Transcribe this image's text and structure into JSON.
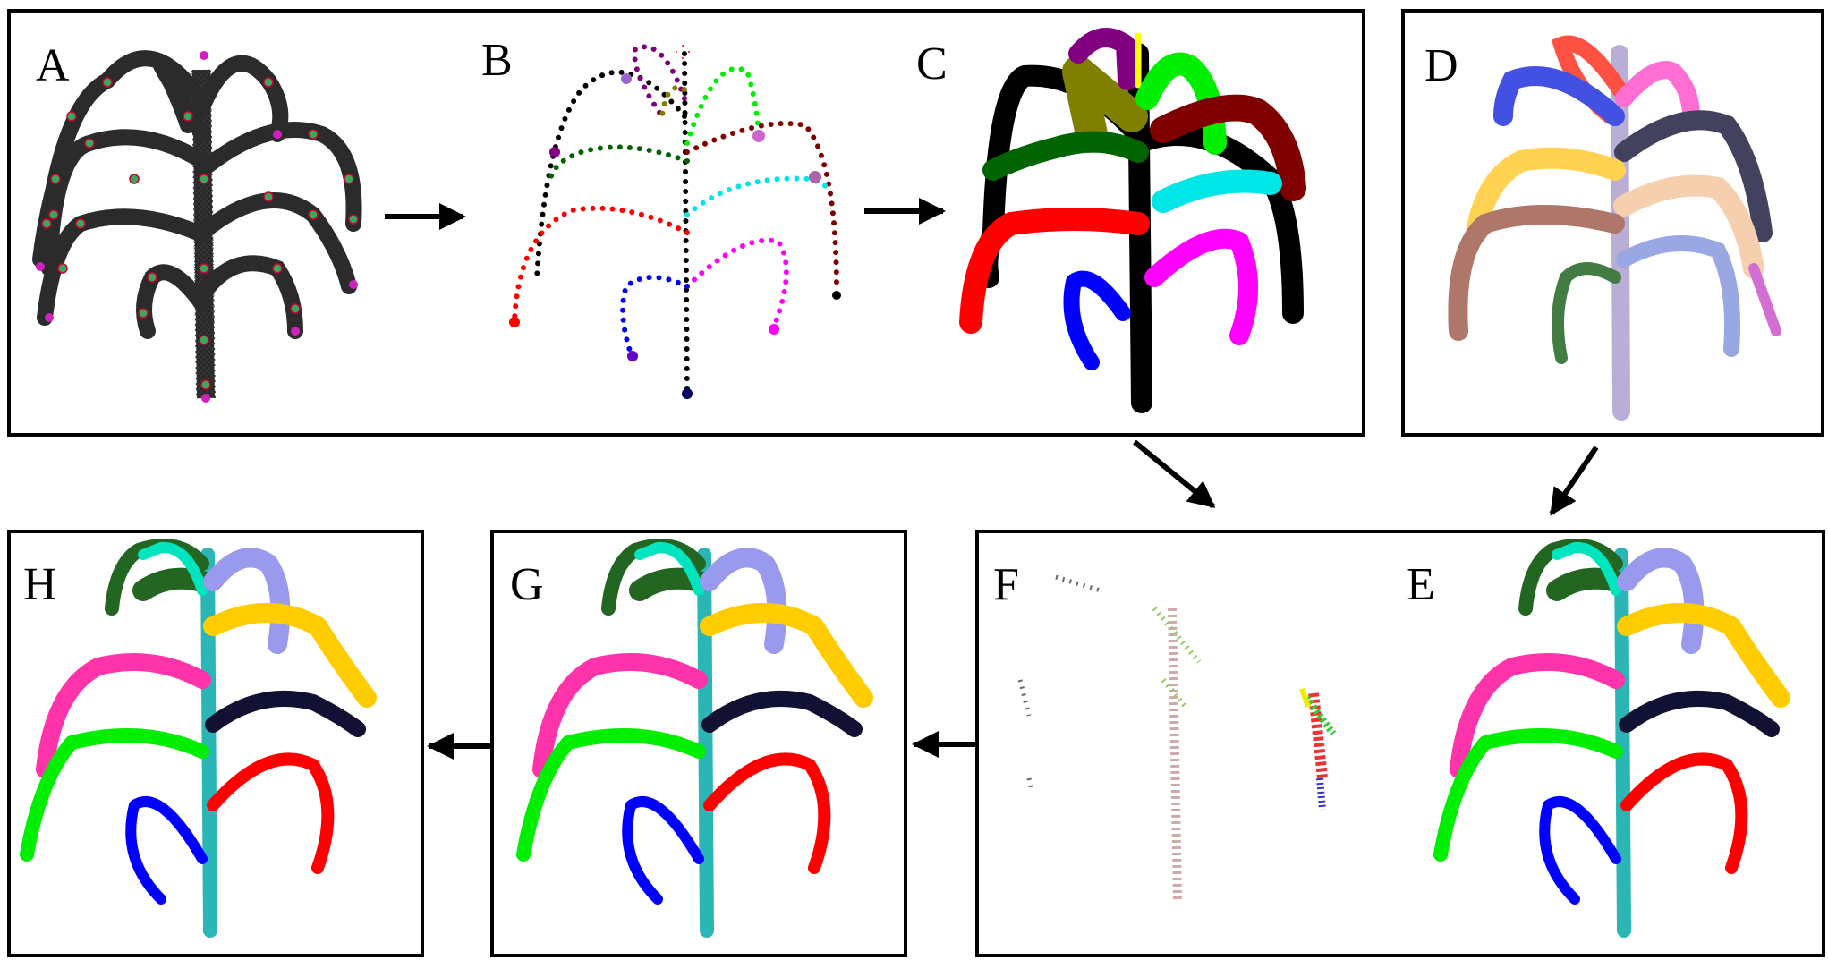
{
  "panels": [
    {
      "id": "A",
      "label": "A"
    },
    {
      "id": "B",
      "label": "B"
    },
    {
      "id": "C",
      "label": "C"
    },
    {
      "id": "D",
      "label": "D"
    },
    {
      "id": "E",
      "label": "E"
    },
    {
      "id": "F",
      "label": "F"
    },
    {
      "id": "G",
      "label": "G"
    },
    {
      "id": "H",
      "label": "H"
    }
  ],
  "colors": {
    "B_C_organs": [
      "#000000",
      "#ff0000",
      "#0000ff",
      "#ff00ff",
      "#00ffff",
      "#006400",
      "#800000",
      "#00ff00",
      "#808000",
      "#800080",
      "#ffff00"
    ],
    "E_G_H_organs": [
      "#2cb5b5",
      "#0000ff",
      "#ff0000",
      "#00ee00",
      "#ff33aa",
      "#111133",
      "#ffcc00",
      "#226622",
      "#00e5c0",
      "#9999ee"
    ]
  }
}
